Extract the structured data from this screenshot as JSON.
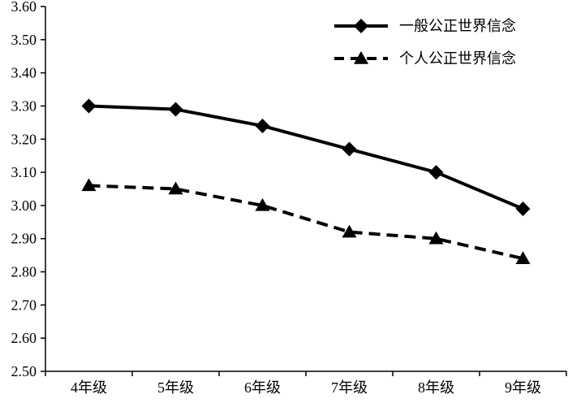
{
  "chart_data": {
    "type": "line",
    "categories": [
      "4年级",
      "5年级",
      "6年级",
      "7年级",
      "8年级",
      "9年级"
    ],
    "series": [
      {
        "name": "一般公正世界信念",
        "values": [
          3.3,
          3.29,
          3.24,
          3.17,
          3.1,
          2.99
        ],
        "line_style": "solid",
        "marker": "diamond",
        "color": "#000000"
      },
      {
        "name": "个人公正世界信念",
        "values": [
          3.06,
          3.05,
          3.0,
          2.92,
          2.9,
          2.84
        ],
        "line_style": "dashed",
        "marker": "triangle",
        "color": "#000000"
      }
    ],
    "ylim": [
      2.5,
      3.6
    ],
    "yticks": [
      "2.50",
      "2.60",
      "2.70",
      "2.80",
      "2.90",
      "3.00",
      "3.10",
      "3.20",
      "3.30",
      "3.40",
      "3.50",
      "3.60"
    ],
    "title": "",
    "xlabel": "",
    "ylabel": "",
    "grid": false,
    "legend_position": "top-right"
  }
}
